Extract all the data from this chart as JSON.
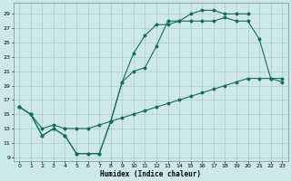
{
  "xlabel": "Humidex (Indice chaleur)",
  "xlim": [
    -0.5,
    23.5
  ],
  "ylim": [
    8.5,
    30.5
  ],
  "xticks": [
    0,
    1,
    2,
    3,
    4,
    5,
    6,
    7,
    8,
    9,
    10,
    11,
    12,
    13,
    14,
    15,
    16,
    17,
    18,
    19,
    20,
    21,
    22,
    23
  ],
  "yticks": [
    9,
    11,
    13,
    15,
    17,
    19,
    21,
    23,
    25,
    27,
    29
  ],
  "background_color": "#cce8e8",
  "grid_color": "#aacccc",
  "line_color": "#1a6b5a",
  "line1_x": [
    0,
    1,
    2,
    3,
    4,
    5,
    6,
    7,
    8,
    9,
    10,
    11,
    12,
    13,
    14,
    15,
    16,
    17,
    18,
    19,
    20
  ],
  "line1_y": [
    16,
    15,
    12,
    13,
    12,
    9.5,
    9.5,
    9.5,
    14,
    19.5,
    23.5,
    26,
    27.5,
    27.5,
    28,
    29,
    29.5,
    29.5,
    29,
    29,
    29
  ],
  "line2_x": [
    0,
    1,
    2,
    3,
    4,
    5,
    6,
    7,
    8,
    9,
    10,
    11,
    12,
    13,
    14,
    15,
    16,
    17,
    18,
    19,
    20,
    21,
    22,
    23
  ],
  "line2_y": [
    16,
    15,
    12,
    13,
    12,
    9.5,
    9.5,
    9.5,
    14,
    19.5,
    21,
    21.5,
    24.5,
    28,
    28,
    28,
    28,
    28,
    28.5,
    28,
    28,
    25.5,
    20,
    19.5
  ],
  "line3_x": [
    0,
    1,
    2,
    3,
    4,
    5,
    6,
    7,
    8,
    9,
    10,
    11,
    12,
    13,
    14,
    15,
    16,
    17,
    18,
    19,
    20,
    21,
    22,
    23
  ],
  "line3_y": [
    16,
    15,
    13,
    13.5,
    13,
    13,
    13,
    13.5,
    14,
    14.5,
    15,
    15.5,
    16,
    16.5,
    17,
    17.5,
    18,
    18.5,
    19,
    19.5,
    20,
    20,
    20,
    20
  ]
}
